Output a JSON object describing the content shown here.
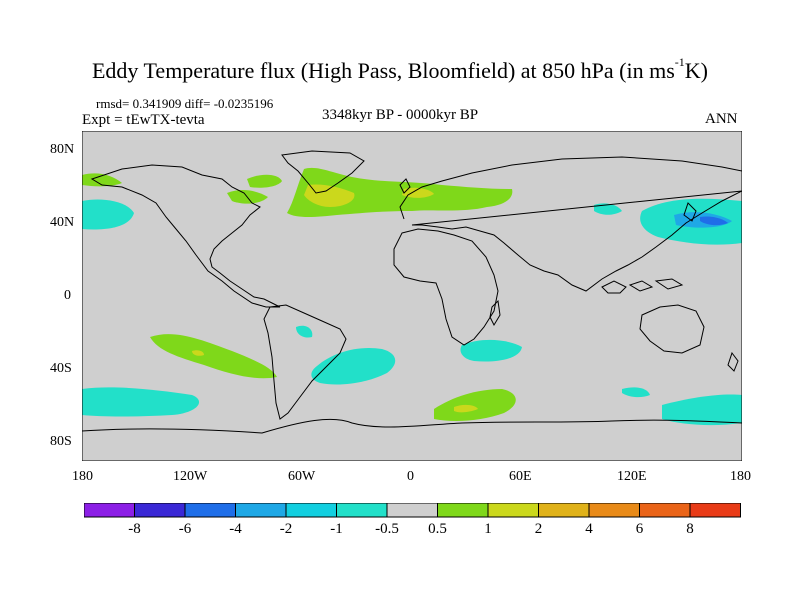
{
  "map": {
    "title_main": "Eddy Temperature flux (High Pass, Bloomfield) at 850 hPa (in ms",
    "title_sup": "-1",
    "title_end": "K)",
    "stats": "rmsd= 0.341909 diff= -0.0235196",
    "expt": "Expt = tEwTX-tevta",
    "period": "3348kyr BP - 0000kyr BP",
    "season": "ANN",
    "lat_labels": [
      "80N",
      "40N",
      "0",
      "40S",
      "80S"
    ],
    "lon_labels": [
      "180",
      "120W",
      "60W",
      "0",
      "60E",
      "120E",
      "180"
    ]
  },
  "colorbar": {
    "colors": [
      "#8c1fe6",
      "#3a28d6",
      "#1f6ee8",
      "#1fa8e6",
      "#12cfe0",
      "#22e0c9",
      "#cfcfcf",
      "#7fd81a",
      "#cbd81c",
      "#e0b21a",
      "#e88a18",
      "#ea6418",
      "#e83b17"
    ],
    "labels": [
      "-8",
      "-6",
      "-4",
      "-2",
      "-1",
      "-0.5",
      "0.5",
      "1",
      "2",
      "4",
      "6",
      "8"
    ]
  },
  "legend_colors": {
    "neutral": "#cfcfcf",
    "cyan": "#22e0c9",
    "blue": "#1fa8e6",
    "deep_blue": "#1f6ee8",
    "green": "#7fd81a",
    "yellow": "#cbd81c",
    "orange": "#e0b21a"
  }
}
